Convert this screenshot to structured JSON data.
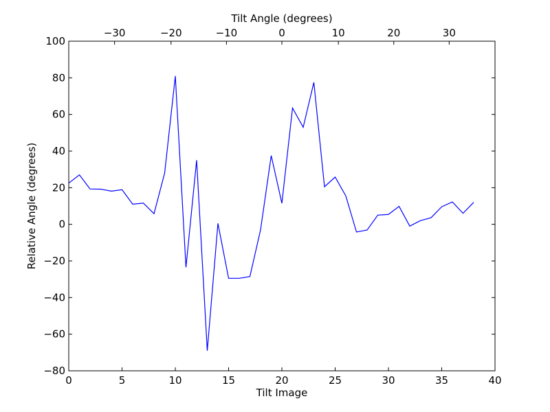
{
  "chart_data": {
    "type": "line",
    "xlabel": "Tilt Image",
    "ylabel": "Relative Angle (degrees)",
    "top_xlabel": "Tilt Angle (degrees)",
    "xlim": [
      0,
      40
    ],
    "ylim": [
      -80,
      100
    ],
    "x_ticks": [
      0,
      5,
      10,
      15,
      20,
      25,
      30,
      35,
      40
    ],
    "y_ticks": [
      -80,
      -60,
      -40,
      -20,
      0,
      20,
      40,
      60,
      80,
      100
    ],
    "top_ticks": [
      {
        "label": "−30",
        "x": 4.3
      },
      {
        "label": "−20",
        "x": 9.6
      },
      {
        "label": "−10",
        "x": 14.8
      },
      {
        "label": "0",
        "x": 20.0
      },
      {
        "label": "10",
        "x": 25.3
      },
      {
        "label": "20",
        "x": 30.5
      },
      {
        "label": "30",
        "x": 35.7
      }
    ],
    "grid": false,
    "series": [
      {
        "color": "#0000ff",
        "x": [
          0,
          1,
          2,
          3,
          4,
          5,
          6,
          7,
          8,
          9,
          10,
          11,
          12,
          13,
          14,
          15,
          16,
          17,
          18,
          19,
          20,
          21,
          22,
          23,
          24,
          25,
          26,
          27,
          28,
          29,
          30,
          31,
          32,
          33,
          34,
          35,
          36,
          37,
          38
        ],
        "values": [
          22.5,
          27,
          19.3,
          19.2,
          18.1,
          18.9,
          11,
          11.6,
          5.8,
          28,
          81,
          -23.5,
          35,
          -69,
          0.5,
          -29.5,
          -29.5,
          -28.5,
          -3,
          37.5,
          11.5,
          63.5,
          53,
          77.5,
          20.5,
          25.8,
          15.5,
          -4.2,
          -3.1,
          5,
          5.4,
          9.8,
          -1,
          2,
          3.6,
          9.6,
          12.2,
          6,
          12
        ]
      }
    ]
  }
}
